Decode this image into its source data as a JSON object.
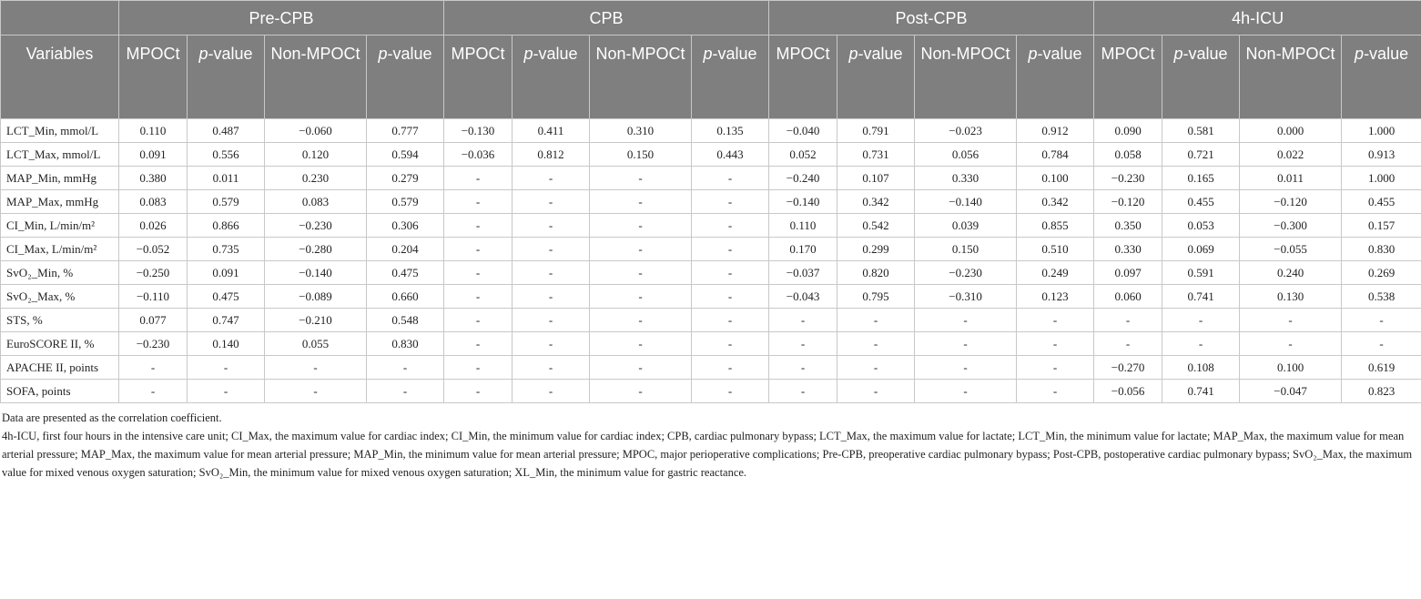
{
  "header": {
    "variables": "Variables",
    "groups": [
      "Pre-CPB",
      "CPB",
      "Post-CPB",
      "4h-ICU"
    ],
    "columns": [
      "MPOCt",
      "p-value",
      "Non-MPOCt",
      "p-value",
      "MPOCt",
      "p-value",
      "Non-MPOCt",
      "p-value",
      "MPOCt",
      "p-value",
      "Non-MPOCt",
      "p-value",
      "MPOCt",
      "p-value",
      "Non-MPOCt",
      "p-value"
    ]
  },
  "table": {
    "rows": [
      {
        "label": "LCT_Min, mmol/L",
        "cells": [
          "0.110",
          "0.487",
          "−0.060",
          "0.777",
          "−0.130",
          "0.411",
          "0.310",
          "0.135",
          "−0.040",
          "0.791",
          "−0.023",
          "0.912",
          "0.090",
          "0.581",
          "0.000",
          "1.000"
        ]
      },
      {
        "label": "LCT_Max, mmol/L",
        "cells": [
          "0.091",
          "0.556",
          "0.120",
          "0.594",
          "−0.036",
          "0.812",
          "0.150",
          "0.443",
          "0.052",
          "0.731",
          "0.056",
          "0.784",
          "0.058",
          "0.721",
          "0.022",
          "0.913"
        ]
      },
      {
        "label": "MAP_Min, mmHg",
        "cells": [
          "0.380",
          "0.011",
          "0.230",
          "0.279",
          "-",
          "-",
          "-",
          "-",
          "−0.240",
          "0.107",
          "0.330",
          "0.100",
          "−0.230",
          "0.165",
          "0.011",
          "1.000"
        ]
      },
      {
        "label": "MAP_Max, mmHg",
        "cells": [
          "0.083",
          "0.579",
          "0.083",
          "0.579",
          "-",
          "-",
          "-",
          "-",
          "−0.140",
          "0.342",
          "−0.140",
          "0.342",
          "−0.120",
          "0.455",
          "−0.120",
          "0.455"
        ]
      },
      {
        "label": "CI_Min, L/min/m²",
        "cells": [
          "0.026",
          "0.866",
          "−0.230",
          "0.306",
          "-",
          "-",
          "-",
          "-",
          "0.110",
          "0.542",
          "0.039",
          "0.855",
          "0.350",
          "0.053",
          "−0.300",
          "0.157"
        ]
      },
      {
        "label": "CI_Max, L/min/m²",
        "cells": [
          "−0.052",
          "0.735",
          "−0.280",
          "0.204",
          "-",
          "-",
          "-",
          "-",
          "0.170",
          "0.299",
          "0.150",
          "0.510",
          "0.330",
          "0.069",
          "−0.055",
          "0.830"
        ]
      },
      {
        "label": "SvO₂_Min, %",
        "cells": [
          "−0.250",
          "0.091",
          "−0.140",
          "0.475",
          "-",
          "-",
          "-",
          "-",
          "−0.037",
          "0.820",
          "−0.230",
          "0.249",
          "0.097",
          "0.591",
          "0.240",
          "0.269"
        ]
      },
      {
        "label": "SvO₂_Max, %",
        "cells": [
          "−0.110",
          "0.475",
          "−0.089",
          "0.660",
          "-",
          "-",
          "-",
          "-",
          "−0.043",
          "0.795",
          "−0.310",
          "0.123",
          "0.060",
          "0.741",
          "0.130",
          "0.538"
        ]
      },
      {
        "label": "STS, %",
        "cells": [
          "0.077",
          "0.747",
          "−0.210",
          "0.548",
          "-",
          "-",
          "-",
          "-",
          "-",
          "-",
          "-",
          "-",
          "-",
          "-",
          "-",
          "-"
        ]
      },
      {
        "label": "EuroSCORE II, %",
        "cells": [
          "−0.230",
          "0.140",
          "0.055",
          "0.830",
          "-",
          "-",
          "-",
          "-",
          "-",
          "-",
          "-",
          "-",
          "-",
          "-",
          "-",
          "-"
        ]
      },
      {
        "label": "APACHE II, points",
        "cells": [
          "-",
          "-",
          "-",
          "-",
          "-",
          "-",
          "-",
          "-",
          "-",
          "-",
          "-",
          "-",
          "−0.270",
          "0.108",
          "0.100",
          "0.619"
        ]
      },
      {
        "label": "SOFA, points",
        "cells": [
          "-",
          "-",
          "-",
          "-",
          "-",
          "-",
          "-",
          "-",
          "-",
          "-",
          "-",
          "-",
          "−0.056",
          "0.741",
          "−0.047",
          "0.823"
        ]
      }
    ]
  },
  "notes": [
    "Data are presented as the correlation coefficient.",
    "4h-ICU, first four hours in the intensive care unit; CI_Max, the maximum value for cardiac index; CI_Min, the minimum value for cardiac index; CPB, cardiac pulmonary bypass; LCT_Max, the maximum value for lactate; LCT_Min, the minimum value for lactate; MAP_Max, the maximum value for mean arterial pressure; MAP_Max, the maximum value for mean arterial pressure; MAP_Min, the minimum value for mean arterial pressure; MPOC, major perioperative complications; Pre-CPB, preoperative cardiac pulmonary bypass; Post-CPB, postoperative cardiac pulmonary bypass; SvO₂_Max, the maximum value for mixed venous oxygen saturation; SvO₂_Min, the minimum value for mixed venous oxygen saturation; XL_Min, the minimum value for gastric reactance."
  ]
}
